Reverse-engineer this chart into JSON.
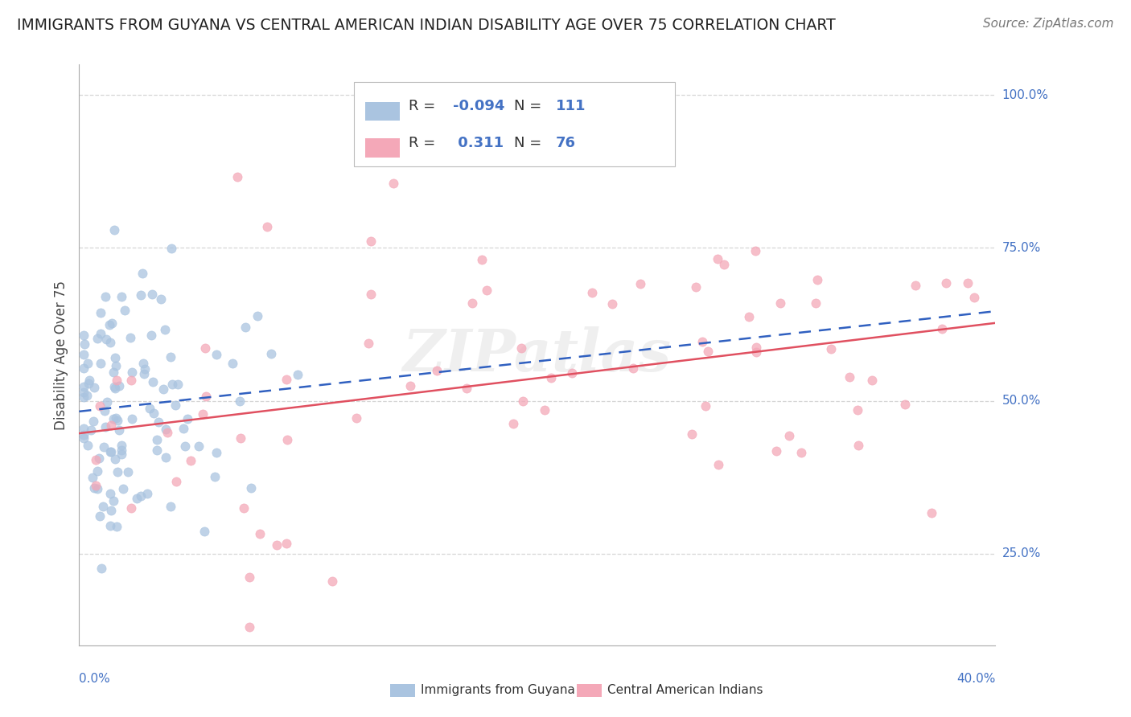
{
  "title": "IMMIGRANTS FROM GUYANA VS CENTRAL AMERICAN INDIAN DISABILITY AGE OVER 75 CORRELATION CHART",
  "source": "Source: ZipAtlas.com",
  "ylabel_text": "Disability Age Over 75",
  "xmin": 0.0,
  "xmax": 0.4,
  "ymin": 0.1,
  "ymax": 1.05,
  "ylabel_labels": [
    "25.0%",
    "50.0%",
    "75.0%",
    "100.0%"
  ],
  "ylabel_values": [
    0.25,
    0.5,
    0.75,
    1.0
  ],
  "blue_R": -0.094,
  "blue_N": 111,
  "pink_R": 0.311,
  "pink_N": 76,
  "blue_color": "#aac4e0",
  "pink_color": "#f4a8b8",
  "blue_line_color": "#3060c0",
  "pink_line_color": "#e05060",
  "legend_label_blue": "Immigrants from Guyana",
  "legend_label_pink": "Central American Indians",
  "watermark": "ZIPatlas",
  "background_color": "#ffffff",
  "grid_color": "#cccccc",
  "axis_label_color": "#4472c4",
  "title_color": "#222222"
}
